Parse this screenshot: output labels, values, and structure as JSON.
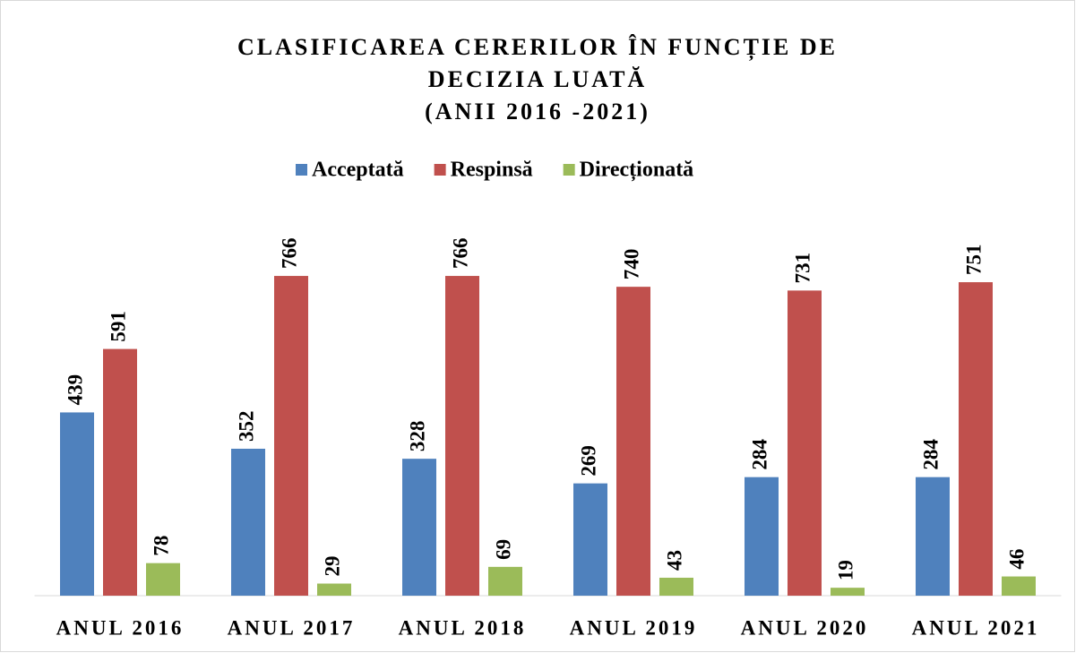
{
  "chart_data": {
    "type": "bar",
    "title": [
      "CLASIFICAREA CERERILOR ÎN FUNCȚIE DE",
      "DECIZIA LUATĂ",
      "(ANII 2016 -2021)"
    ],
    "categories": [
      "ANUL 2016",
      "ANUL 2017",
      "ANUL 2018",
      "ANUL 2019",
      "ANUL 2020",
      "ANUL 2021"
    ],
    "series": [
      {
        "name": "Acceptată",
        "color": "#4f81bd",
        "values": [
          439,
          352,
          328,
          269,
          284,
          284
        ]
      },
      {
        "name": "Respinsă",
        "color": "#c0504d",
        "values": [
          591,
          766,
          766,
          740,
          731,
          751
        ]
      },
      {
        "name": "Direcționată",
        "color": "#9bbb59",
        "values": [
          78,
          29,
          69,
          43,
          19,
          46
        ]
      }
    ],
    "legend": "top"
  }
}
